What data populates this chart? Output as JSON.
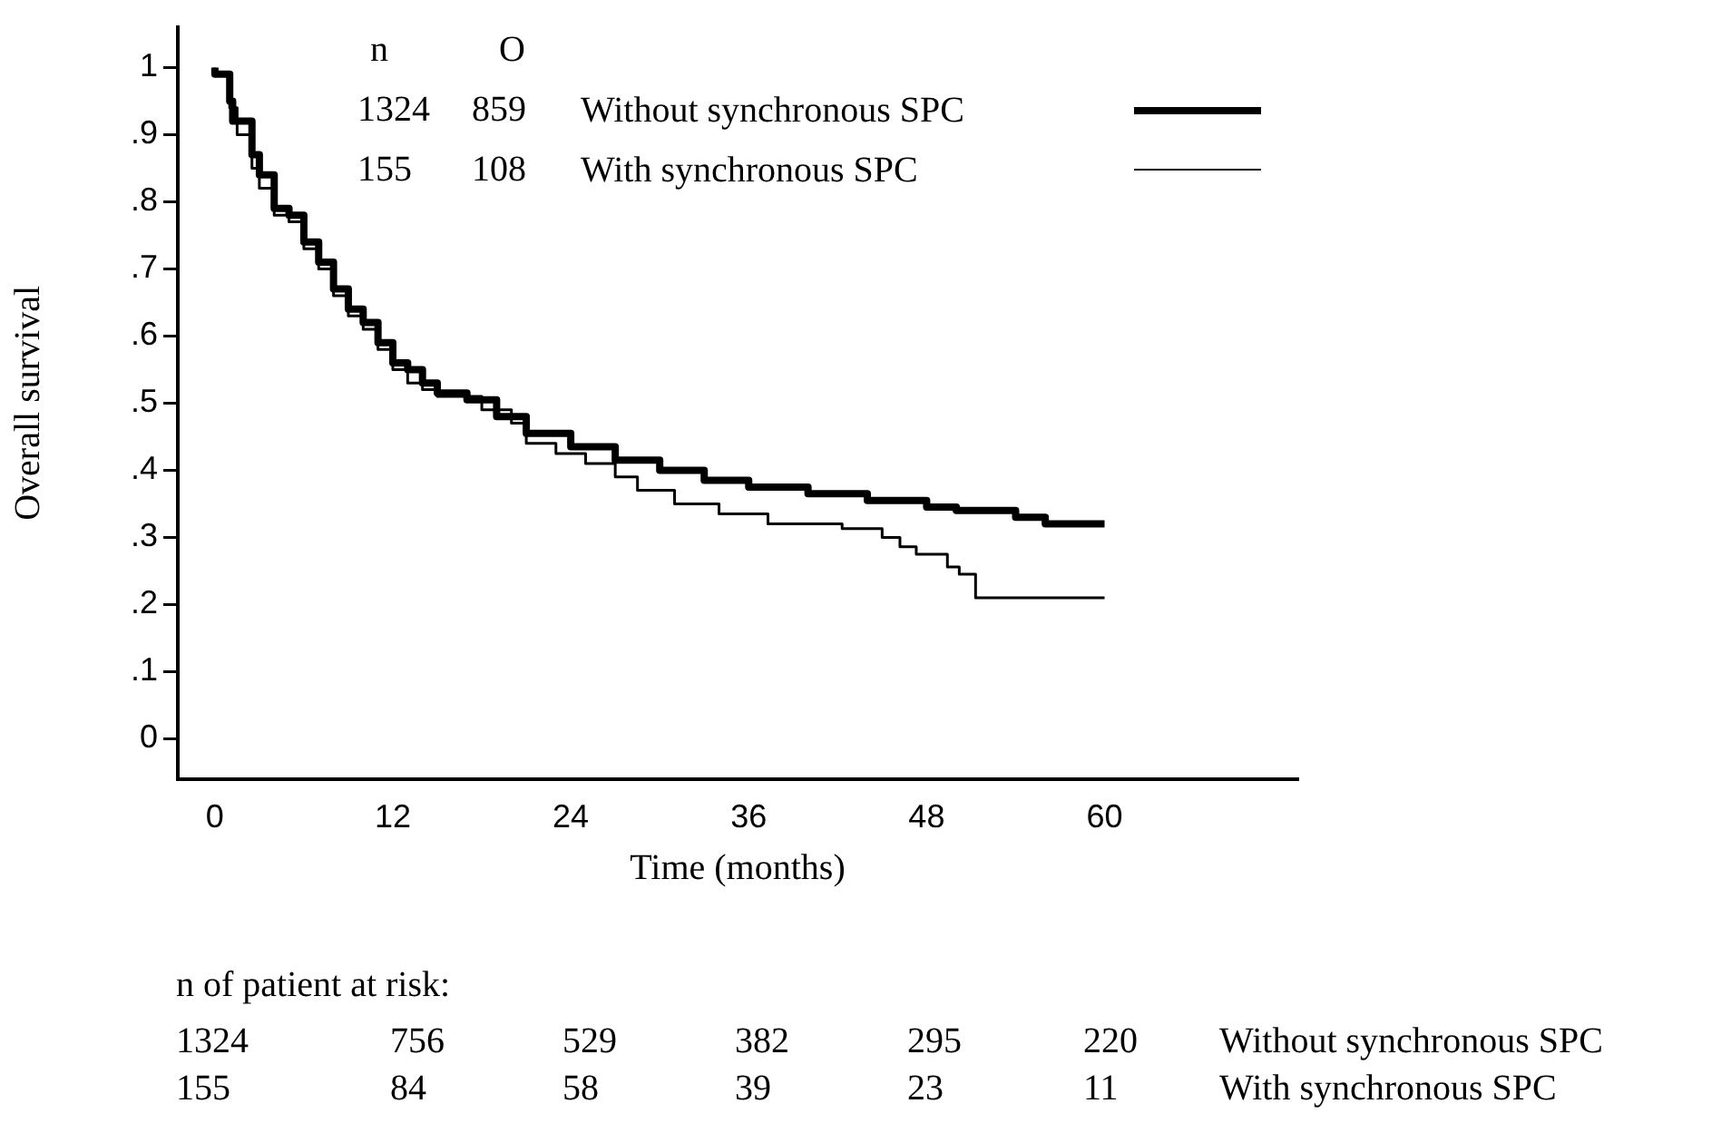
{
  "chart_data": {
    "type": "step",
    "xlabel": "Time (months)",
    "ylabel": "Overall survival",
    "xlim": [
      -2.5,
      73
    ],
    "xticks": [
      0,
      12,
      24,
      36,
      48,
      60
    ],
    "ylim": [
      -0.06,
      1.06
    ],
    "yticks": [
      0,
      {
        "value": 0.1,
        "label": ".1"
      },
      {
        "value": 0.2,
        "label": ".2"
      },
      {
        "value": 0.3,
        "label": ".3"
      },
      {
        "value": 0.4,
        "label": ".4"
      },
      {
        "value": 0.5,
        "label": ".5"
      },
      {
        "value": 0.6,
        "label": ".6"
      },
      {
        "value": 0.7,
        "label": ".7"
      },
      {
        "value": 0.8,
        "label": ".8"
      },
      {
        "value": 0.9,
        "label": ".9"
      },
      1
    ],
    "grid": false,
    "legend": "top",
    "marker": "none",
    "line_style": "solid",
    "series": [
      {
        "name": "Without synchronous SPC",
        "color": "#000000",
        "x": [
          0,
          1,
          1.2,
          2.5,
          3,
          4,
          5,
          6,
          7,
          8,
          9,
          10,
          11,
          12,
          13,
          14,
          15,
          17,
          19,
          21,
          24,
          27,
          30,
          33,
          36,
          40,
          44,
          48,
          50,
          54,
          56,
          58,
          60
        ],
        "values": [
          1,
          0.99,
          0.95,
          0.92,
          0.87,
          0.84,
          0.79,
          0.78,
          0.74,
          0.71,
          0.67,
          0.64,
          0.62,
          0.59,
          0.56,
          0.55,
          0.53,
          0.515,
          0.505,
          0.48,
          0.455,
          0.435,
          0.415,
          0.4,
          0.385,
          0.375,
          0.365,
          0.355,
          0.345,
          0.34,
          0.33,
          0.32,
          0.32
        ]
      },
      {
        "name": "With synchronous SPC",
        "color": "#000000",
        "x": [
          0,
          1,
          1.5,
          2.5,
          3,
          4,
          5,
          6,
          7,
          8,
          9,
          10,
          11,
          12,
          13,
          14,
          15,
          17,
          18,
          20,
          21,
          23,
          25,
          27,
          28.5,
          31,
          34,
          37.3,
          42.3,
          45,
          46.2,
          47.3,
          49.4,
          50.2,
          51.3,
          59.4,
          60
        ],
        "values": [
          1,
          0.99,
          0.94,
          0.9,
          0.85,
          0.82,
          0.78,
          0.77,
          0.73,
          0.7,
          0.66,
          0.63,
          0.61,
          0.58,
          0.55,
          0.53,
          0.52,
          0.51,
          0.51,
          0.49,
          0.47,
          0.44,
          0.425,
          0.41,
          0.39,
          0.37,
          0.35,
          0.335,
          0.32,
          0.313,
          0.3,
          0.286,
          0.275,
          0.256,
          0.245,
          0.21,
          0.21
        ]
      }
    ],
    "annotations": [
      "n",
      "O",
      "1324",
      "859",
      "155",
      "108",
      "n of patient at risk:",
      "1324",
      "756",
      "529",
      "382",
      "295",
      "220",
      "155",
      "84",
      "58",
      "39",
      "23",
      "11"
    ]
  }
}
